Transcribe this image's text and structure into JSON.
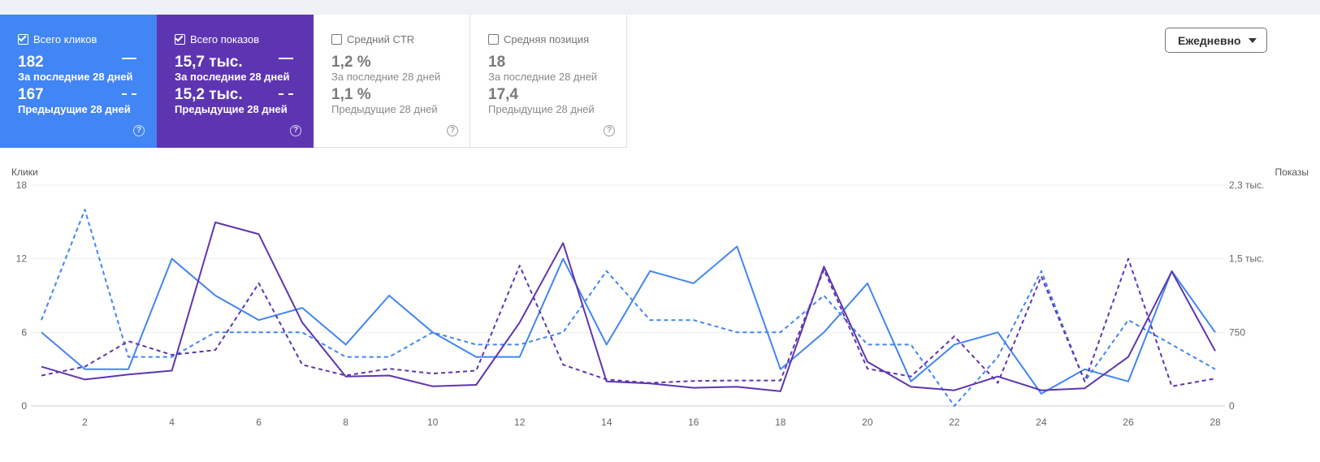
{
  "cards": [
    {
      "title": "Всего кликов",
      "checked": true,
      "theme": "blue",
      "current_value": "182",
      "current_label": "За последние 28 дней",
      "previous_value": "167",
      "previous_label": "Предыдущие 28 дней",
      "help": "?"
    },
    {
      "title": "Всего показов",
      "checked": true,
      "theme": "purple",
      "current_value": "15,7 тыс.",
      "current_label": "За последние 28 дней",
      "previous_value": "15,2 тыс.",
      "previous_label": "Предыдущие 28 дней",
      "help": "?"
    },
    {
      "title": "Средний CTR",
      "checked": false,
      "theme": "white",
      "current_value": "1,2 %",
      "current_label": "За последние 28 дней",
      "previous_value": "1,1 %",
      "previous_label": "Предыдущие 28 дней",
      "help": "?"
    },
    {
      "title": "Средняя позиция",
      "checked": false,
      "theme": "white",
      "current_value": "18",
      "current_label": "За последние 28 дней",
      "previous_value": "17,4",
      "previous_label": "Предыдущие 28 дней",
      "help": "?"
    }
  ],
  "period_dropdown": {
    "selected": "Ежедневно",
    "icon": "caret-down-icon"
  },
  "colors": {
    "clicks": "#4285f4",
    "impressions": "#5e35b1",
    "grid": "#eeeeee",
    "axis": "#cccccc"
  },
  "chart_data": {
    "type": "line",
    "left_axis": {
      "title": "Клики",
      "ticks": [
        0,
        6,
        12,
        18
      ],
      "tick_labels": [
        "0",
        "6",
        "12",
        "18"
      ],
      "range": [
        0,
        18
      ]
    },
    "right_axis": {
      "title": "Показы",
      "ticks": [
        0,
        750,
        1500,
        2250
      ],
      "tick_labels": [
        "0",
        "750",
        "1,5 тыс.",
        "2,3 тыс."
      ],
      "range": [
        0,
        2250
      ]
    },
    "x": [
      1,
      2,
      3,
      4,
      5,
      6,
      7,
      8,
      9,
      10,
      11,
      12,
      13,
      14,
      15,
      16,
      17,
      18,
      19,
      20,
      21,
      22,
      23,
      24,
      25,
      26,
      27,
      28
    ],
    "x_tick_labels": [
      "2",
      "4",
      "6",
      "8",
      "10",
      "12",
      "14",
      "16",
      "18",
      "20",
      "22",
      "24",
      "26",
      "28"
    ],
    "series": [
      {
        "name": "Клики (последние 28 дней)",
        "axis": "left",
        "color": "#4285f4",
        "dashed": false,
        "values": [
          6,
          3,
          3,
          12,
          9,
          7,
          8,
          5,
          9,
          6,
          4,
          4,
          12,
          5,
          11,
          10,
          13,
          3,
          6,
          10,
          2,
          5,
          6,
          1,
          3,
          2,
          11,
          6
        ]
      },
      {
        "name": "Клики (предыдущие 28 дней)",
        "axis": "left",
        "color": "#4285f4",
        "dashed": true,
        "values": [
          7,
          16,
          4,
          4,
          6,
          6,
          6,
          4,
          4,
          6,
          5,
          5,
          6,
          11,
          7,
          7,
          6,
          6,
          9,
          5,
          5,
          0,
          4,
          11,
          2,
          7,
          5,
          3
        ]
      },
      {
        "name": "Показы (последние 28 дней)",
        "axis": "right",
        "color": "#5e35b1",
        "dashed": false,
        "values": [
          400,
          270,
          320,
          360,
          1870,
          1750,
          850,
          300,
          310,
          200,
          215,
          850,
          1660,
          250,
          230,
          185,
          195,
          150,
          1420,
          450,
          195,
          160,
          300,
          160,
          180,
          500,
          1370,
          560
        ]
      },
      {
        "name": "Показы (предыдущие 28 дней)",
        "axis": "right",
        "color": "#5e35b1",
        "dashed": true,
        "values": [
          310,
          400,
          660,
          520,
          570,
          1250,
          420,
          310,
          380,
          330,
          360,
          1430,
          420,
          270,
          235,
          255,
          260,
          260,
          1390,
          380,
          300,
          710,
          235,
          1320,
          250,
          1500,
          200,
          280
        ]
      }
    ]
  }
}
